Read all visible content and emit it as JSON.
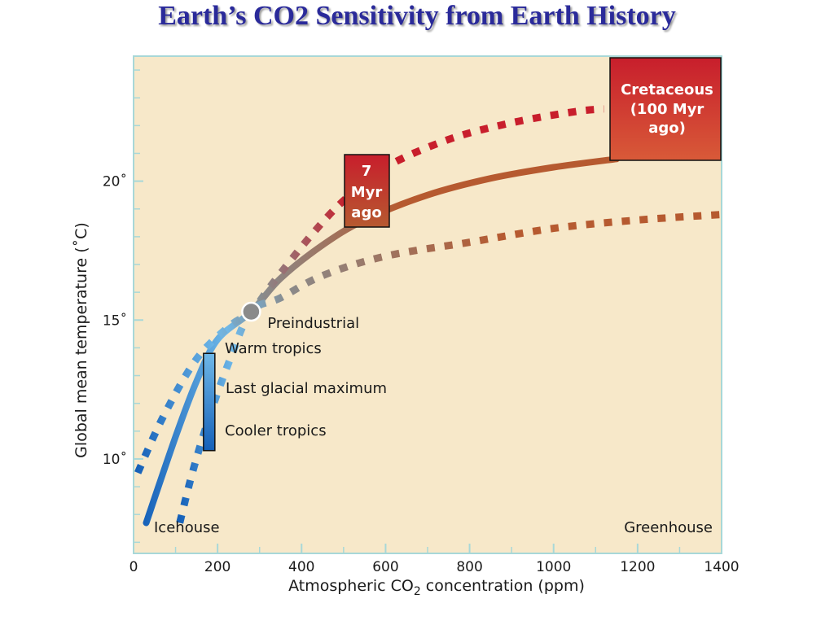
{
  "title": "Earth’s CO2 Sensitivity from Earth History",
  "colors": {
    "plot_background": "#f7e8c9",
    "plot_border": "#a8d8d8",
    "cold_blue": "#1560b8",
    "light_blue": "#6fb8e8",
    "neutral_gray": "#8a8a8a",
    "warm_brown": "#b65a30",
    "hot_red": "#c81e2c",
    "title_blue": "#2a2a9a"
  },
  "chart_data": {
    "type": "line",
    "xlabel": "Atmospheric CO",
    "xlabel_subscript": "2",
    "xlabel_suffix": " concentration  (ppm)",
    "ylabel": "Global mean temperature (˚C)",
    "xlim": [
      0,
      1400
    ],
    "ylim": [
      6.6,
      24.5
    ],
    "x_ticks": [
      0,
      200,
      400,
      600,
      800,
      1000,
      1200,
      1400
    ],
    "x_tick_labels": [
      "0",
      "200",
      "400",
      "600",
      "800",
      "1000",
      "1200",
      "1400"
    ],
    "y_ticks": [
      10,
      15,
      20
    ],
    "y_tick_labels": [
      "10˚",
      "15˚",
      "20˚"
    ],
    "grid": false,
    "series": [
      {
        "style": "solid",
        "points": [
          [
            30,
            7.7
          ],
          [
            100,
            10.8
          ],
          [
            150,
            12.8
          ],
          [
            200,
            14.3
          ],
          [
            280,
            15.3
          ],
          [
            350,
            16.5
          ],
          [
            450,
            17.7
          ],
          [
            550,
            18.6
          ],
          [
            700,
            19.5
          ],
          [
            850,
            20.1
          ],
          [
            1000,
            20.5
          ],
          [
            1150,
            20.8
          ]
        ]
      },
      {
        "style": "dotted",
        "points": [
          [
            10,
            9.5
          ],
          [
            70,
            11.5
          ],
          [
            150,
            13.6
          ],
          [
            230,
            14.8
          ],
          [
            280,
            15.3
          ],
          [
            330,
            16.3
          ],
          [
            420,
            18.0
          ],
          [
            500,
            19.3
          ],
          [
            600,
            20.5
          ],
          [
            750,
            21.5
          ],
          [
            900,
            22.1
          ],
          [
            1050,
            22.5
          ],
          [
            1120,
            22.6
          ]
        ]
      },
      {
        "style": "dotted",
        "points": [
          [
            110,
            7.7
          ],
          [
            140,
            9.5
          ],
          [
            180,
            11.5
          ],
          [
            230,
            13.6
          ],
          [
            280,
            15.3
          ],
          [
            350,
            15.8
          ],
          [
            450,
            16.6
          ],
          [
            600,
            17.3
          ],
          [
            800,
            17.8
          ],
          [
            1000,
            18.3
          ],
          [
            1200,
            18.6
          ],
          [
            1400,
            18.8
          ]
        ]
      }
    ],
    "points": [
      {
        "label": "Preindustrial",
        "x": 280,
        "y": 15.3
      }
    ],
    "range_bar": {
      "x": 180,
      "y_top": 13.8,
      "y_bottom": 10.3
    },
    "annotations": {
      "range_labels": [
        "Warm tropics",
        "Last glacial maximum",
        "Cooler tropics"
      ],
      "corner_labels": [
        "Icehouse",
        "Greenhouse"
      ],
      "boxes": [
        {
          "lines": [
            "7",
            "Myr",
            "ago"
          ]
        },
        {
          "lines": [
            "Cretaceous",
            "(100 Myr",
            "ago)"
          ]
        }
      ]
    }
  }
}
